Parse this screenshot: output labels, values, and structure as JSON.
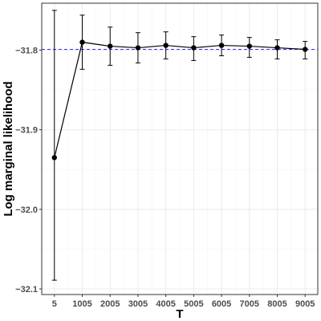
{
  "chart_data": {
    "type": "line",
    "title": "",
    "xlabel": "T",
    "ylabel": "Log marginal  likelihood",
    "x": [
      5,
      1005,
      2005,
      3005,
      4005,
      5005,
      6005,
      7005,
      8005,
      9005
    ],
    "series": [
      {
        "values": [
          -31.935,
          -31.79,
          -31.795,
          -31.797,
          -31.794,
          -31.797,
          -31.794,
          -31.795,
          -31.797,
          -31.799
        ],
        "error_low": [
          -32.089,
          -31.824,
          -31.819,
          -31.816,
          -31.811,
          -31.813,
          -31.807,
          -31.809,
          -31.811,
          -31.811
        ],
        "error_high": [
          -31.75,
          -31.756,
          -31.771,
          -31.778,
          -31.777,
          -31.783,
          -31.781,
          -31.784,
          -31.787,
          -31.789
        ],
        "color": "#000000",
        "marker": "circle"
      }
    ],
    "reference_line": {
      "y": -31.799,
      "color": "#3333ff",
      "style": "dashed"
    },
    "xlim": [
      -450,
      9460
    ],
    "ylim": [
      -32.107,
      -31.741
    ],
    "xticks": [
      5,
      1005,
      2005,
      3005,
      4005,
      5005,
      6005,
      7005,
      8005,
      9005
    ],
    "xtick_labels": [
      "5",
      "1005",
      "2005",
      "3005",
      "4005",
      "5005",
      "6005",
      "7005",
      "8005",
      "9005"
    ],
    "yticks": [
      -32.1,
      -32.0,
      -31.9,
      -31.8
    ],
    "ytick_labels": [
      "−32.1",
      "−32.0",
      "−31.9",
      "−31.8"
    ],
    "grid": true,
    "legend": "none"
  }
}
